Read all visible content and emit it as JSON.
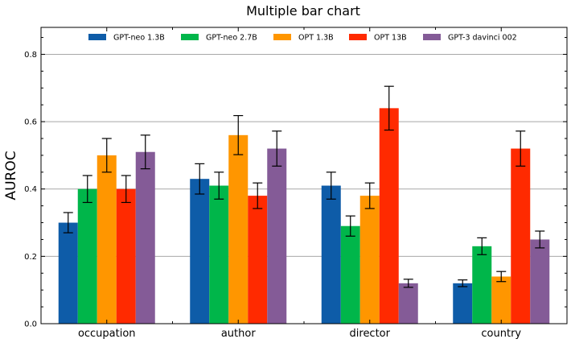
{
  "chart_data": {
    "type": "bar",
    "title": "Multiple bar chart",
    "xlabel": "",
    "ylabel": "AUROC",
    "ylim": [
      0,
      0.88
    ],
    "yticks": [
      "0.0",
      "0.2",
      "0.4",
      "0.6",
      "0.8"
    ],
    "grid": "horizontal",
    "legend_position": "top-center",
    "categories": [
      "occupation",
      "author",
      "director",
      "country"
    ],
    "series": [
      {
        "name": "GPT-neo 1.3B",
        "color": "#0e5ca8",
        "values": [
          0.3,
          0.43,
          0.41,
          0.12
        ],
        "errors": [
          0.03,
          0.045,
          0.04,
          0.01
        ]
      },
      {
        "name": "GPT-neo 2.7B",
        "color": "#00b64a",
        "values": [
          0.4,
          0.41,
          0.29,
          0.23
        ],
        "errors": [
          0.04,
          0.04,
          0.03,
          0.025
        ]
      },
      {
        "name": "OPT 1.3B",
        "color": "#ff9600",
        "values": [
          0.5,
          0.56,
          0.38,
          0.14
        ],
        "errors": [
          0.05,
          0.058,
          0.038,
          0.015
        ]
      },
      {
        "name": "OPT 13B",
        "color": "#ff2a00",
        "values": [
          0.4,
          0.38,
          0.64,
          0.52
        ],
        "errors": [
          0.04,
          0.038,
          0.065,
          0.052
        ]
      },
      {
        "name": "GPT-3 davinci 002",
        "color": "#845b97",
        "values": [
          0.51,
          0.52,
          0.12,
          0.25
        ],
        "errors": [
          0.05,
          0.052,
          0.012,
          0.025
        ]
      }
    ]
  }
}
